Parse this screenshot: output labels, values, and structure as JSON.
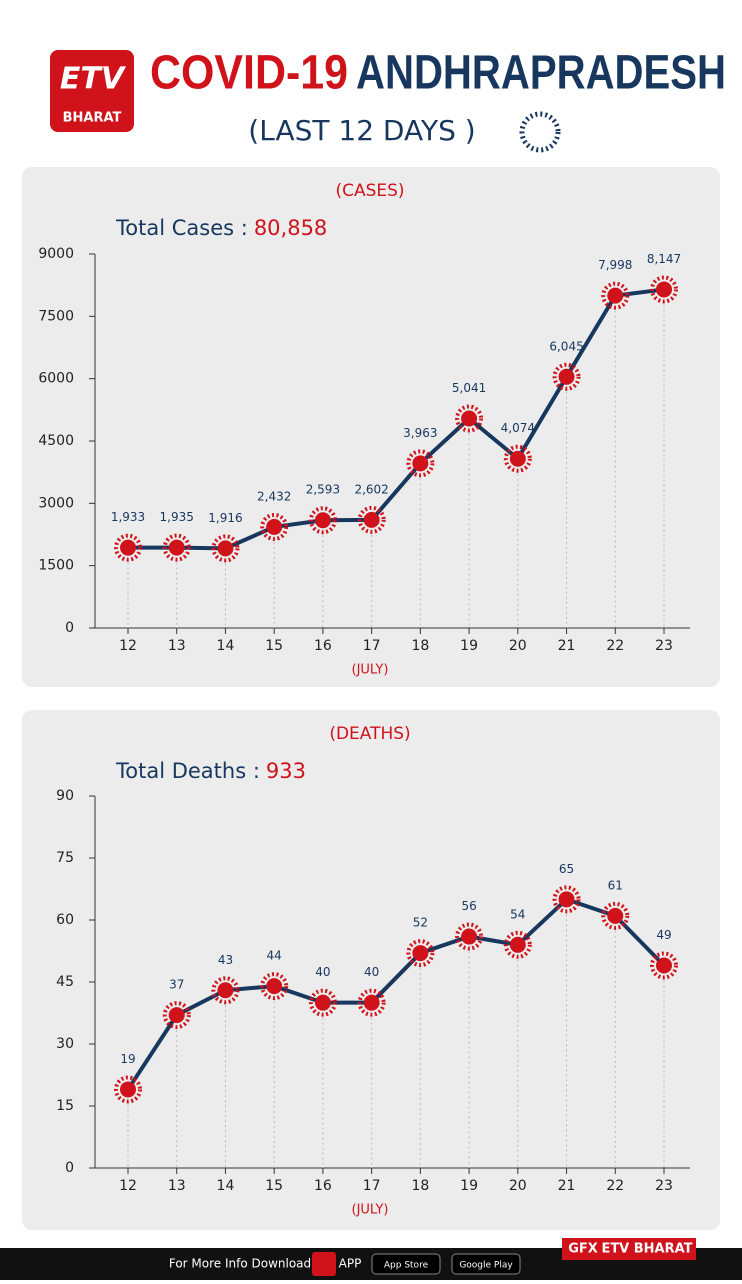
{
  "header": {
    "logo": "BHARAT",
    "title_red": "COVID-19",
    "title_blue": "ANDHRAPRADESH",
    "subtitle": "(LAST 12 DAYS )"
  },
  "chart_data": [
    {
      "type": "line",
      "title": "(CASES)",
      "annotation_label": "Total Cases :",
      "annotation_value": "80,858",
      "xlabel": "(JULY)",
      "categories": [
        "12",
        "13",
        "14",
        "15",
        "16",
        "17",
        "18",
        "19",
        "20",
        "21",
        "22",
        "23"
      ],
      "values": [
        1933,
        1935,
        1916,
        2432,
        2593,
        2602,
        3963,
        5041,
        4074,
        6045,
        7998,
        8147
      ],
      "value_labels": [
        "1,933",
        "1,935",
        "1,916",
        "2,432",
        "2,593",
        "2,602",
        "3,963",
        "5,041",
        "4,074",
        "6,045",
        "7,998",
        "8,147"
      ],
      "color": "#17375e",
      "marker_color": "#d0121b",
      "ylim": [
        0,
        9000
      ],
      "yticks": [
        0,
        1500,
        3000,
        4500,
        6000,
        7500,
        9000
      ]
    },
    {
      "type": "line",
      "title": "(DEATHS)",
      "annotation_label": "Total Deaths :",
      "annotation_value": "933",
      "xlabel": "(JULY)",
      "categories": [
        "12",
        "13",
        "14",
        "15",
        "16",
        "17",
        "18",
        "19",
        "20",
        "21",
        "22",
        "23"
      ],
      "values": [
        19,
        37,
        43,
        44,
        40,
        40,
        52,
        56,
        54,
        65,
        61,
        49
      ],
      "color": "#17375e",
      "marker_color": "#d0121b",
      "ylim": [
        0,
        90
      ],
      "yticks": [
        0,
        15,
        30,
        45,
        60,
        75,
        90
      ]
    }
  ],
  "footer": {
    "text": "For More Info Download",
    "app": "APP",
    "app_store": "App Store",
    "google_play": "Google Play",
    "gfx": "GFX",
    "brand": "ETV BHARAT"
  }
}
